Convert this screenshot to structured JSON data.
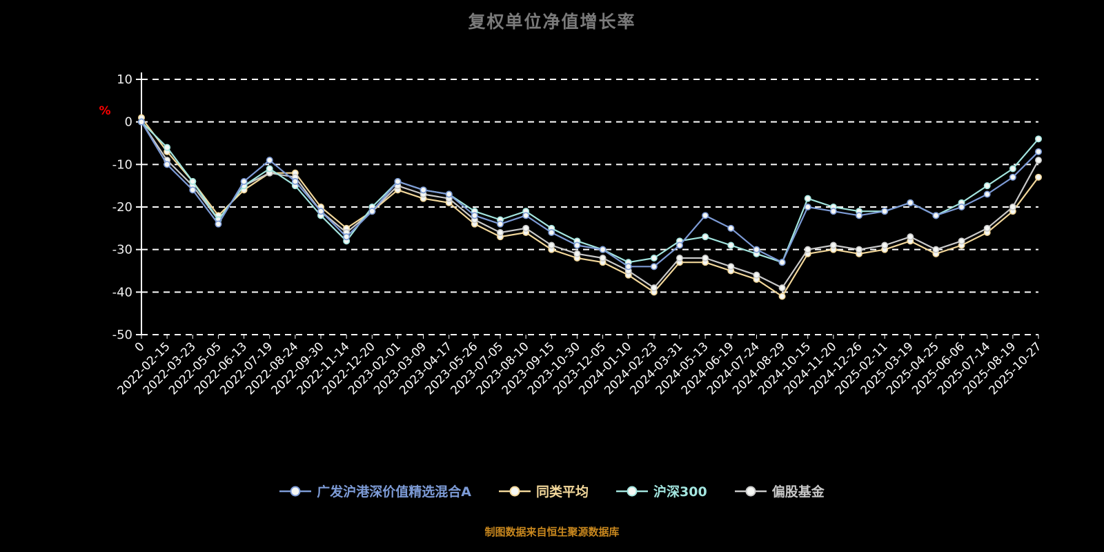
{
  "title": "复权单位净值增长率",
  "source_note": "制图数据来自恒生聚源数据库",
  "chart_data": {
    "type": "line",
    "title": "复权单位净值增长率",
    "xlabel": "",
    "ylabel": "%",
    "ylabel_color": "#ff0000",
    "ylim": [
      -50,
      10
    ],
    "y_ticks": [
      10,
      0,
      -10,
      -20,
      -30,
      -40,
      -50
    ],
    "grid": true,
    "grid_style": "dashed-white",
    "background": "#000000",
    "legend_position": "bottom",
    "categories": [
      "0",
      "2022-02-15",
      "2022-03-23",
      "2022-05-05",
      "2022-06-13",
      "2022-07-19",
      "2022-08-24",
      "2022-09-30",
      "2022-11-14",
      "2022-12-20",
      "2023-02-01",
      "2023-03-09",
      "2023-04-17",
      "2023-05-26",
      "2023-07-05",
      "2023-08-10",
      "2023-09-15",
      "2023-10-30",
      "2023-12-05",
      "2024-01-10",
      "2024-02-23",
      "2024-03-31",
      "2024-05-13",
      "2024-06-19",
      "2024-07-24",
      "2024-08-29",
      "2024-10-15",
      "2024-11-20",
      "2024-12-26",
      "2025-02-11",
      "2025-03-19",
      "2025-04-25",
      "2025-06-06",
      "2025-07-14",
      "2025-08-19",
      "2025-10-27"
    ],
    "series": [
      {
        "name": "广发沪港深价值精选混合A",
        "color": "#7D9BD6",
        "values": [
          0,
          -10,
          -16,
          -24,
          -14,
          -9,
          -14,
          -21,
          -27,
          -21,
          -14,
          -16,
          -17,
          -22,
          -24,
          -22,
          -26,
          -29,
          -30,
          -34,
          -34,
          -29,
          -22,
          -25,
          -30,
          -33,
          -20,
          -21,
          -22,
          -21,
          -19,
          -22,
          -20,
          -17,
          -13,
          -7
        ]
      },
      {
        "name": "同类平均",
        "color": "#F2D79A",
        "values": [
          1,
          -7,
          -14,
          -22,
          -16,
          -12,
          -12,
          -20,
          -25,
          -21,
          -16,
          -18,
          -19,
          -24,
          -27,
          -26,
          -30,
          -32,
          -33,
          -36,
          -40,
          -33,
          -33,
          -35,
          -37,
          -41,
          -31,
          -30,
          -31,
          -30,
          -28,
          -31,
          -29,
          -26,
          -21,
          -13
        ]
      },
      {
        "name": "沪深300",
        "color": "#A3E5DF",
        "values": [
          0,
          -6,
          -14,
          -23,
          -15,
          -11,
          -15,
          -22,
          -28,
          -20,
          -14,
          -16,
          -17,
          -21,
          -23,
          -21,
          -25,
          -28,
          -30,
          -33,
          -32,
          -28,
          -27,
          -29,
          -31,
          -33,
          -18,
          -20,
          -21,
          -21,
          -19,
          -22,
          -19,
          -15,
          -11,
          -4
        ]
      },
      {
        "name": "偏股基金",
        "color": "#C9C9C9",
        "values": [
          0,
          -9,
          -15,
          -23,
          -15,
          -12,
          -13,
          -21,
          -26,
          -21,
          -15,
          -17,
          -18,
          -23,
          -26,
          -25,
          -29,
          -31,
          -32,
          -35,
          -39,
          -32,
          -32,
          -34,
          -36,
          -39,
          -30,
          -29,
          -30,
          -29,
          -27,
          -30,
          -28,
          -25,
          -20,
          -9
        ]
      }
    ]
  }
}
